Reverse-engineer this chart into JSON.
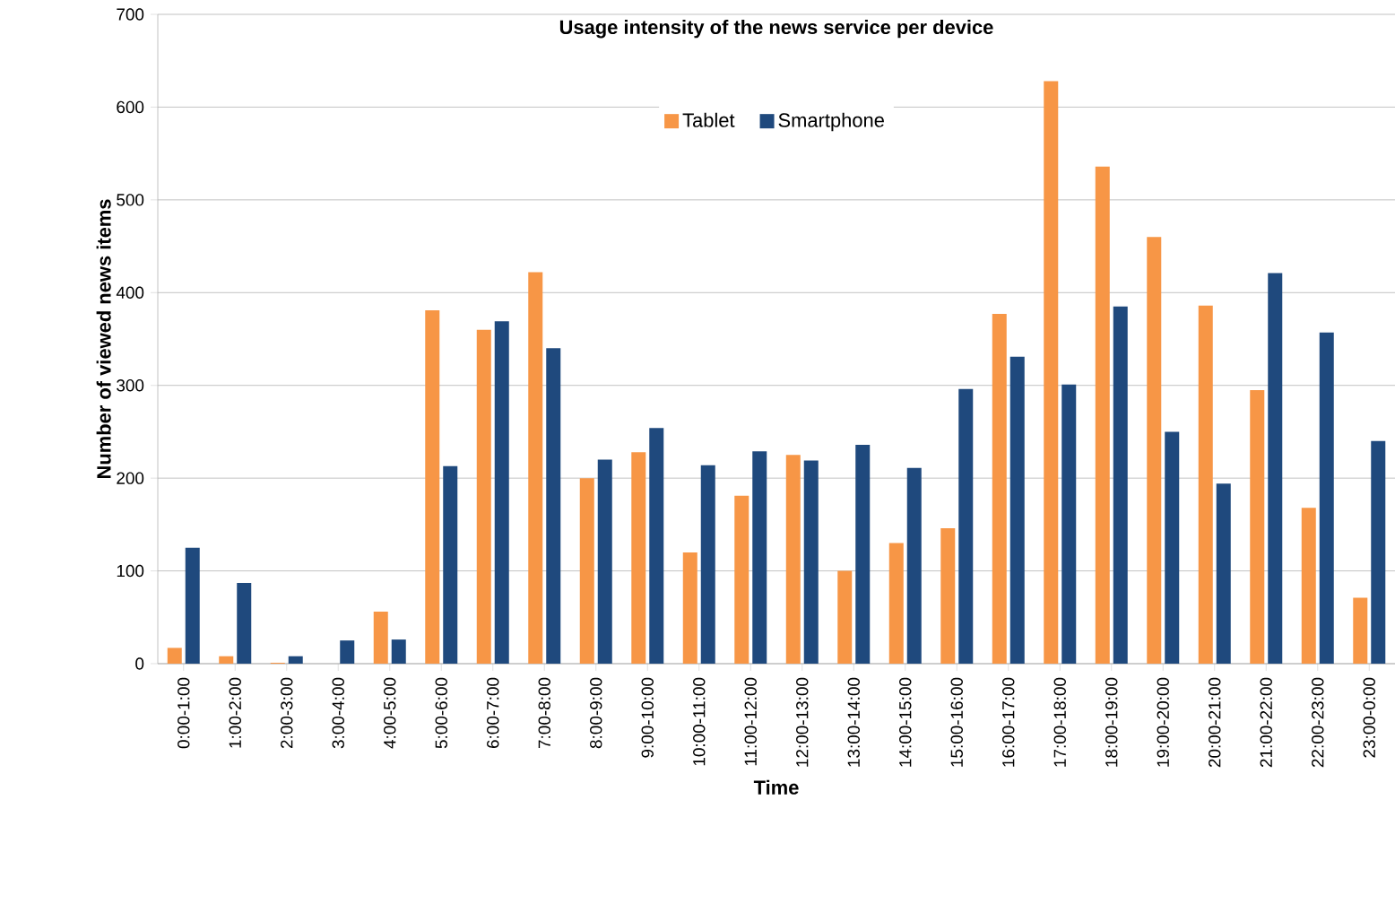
{
  "chart_data": {
    "type": "bar",
    "title": "Usage intensity of the news service per device",
    "xlabel": "Time",
    "ylabel": "Number of viewed news items",
    "categories": [
      "0:00-1:00",
      "1:00-2:00",
      "2:00-3:00",
      "3:00-4:00",
      "4:00-5:00",
      "5:00-6:00",
      "6:00-7:00",
      "7:00-8:00",
      "8:00-9:00",
      "9:00-10:00",
      "10:00-11:00",
      "11:00-12:00",
      "12:00-13:00",
      "13:00-14:00",
      "14:00-15:00",
      "15:00-16:00",
      "16:00-17:00",
      "17:00-18:00",
      "18:00-19:00",
      "19:00-20:00",
      "20:00-21:00",
      "21:00-22:00",
      "22:00-23:00",
      "23:00-0:00"
    ],
    "series": [
      {
        "name": "Tablet",
        "color": "#f79646",
        "values": [
          17,
          8,
          1,
          0,
          56,
          381,
          360,
          422,
          200,
          228,
          120,
          181,
          225,
          100,
          130,
          146,
          377,
          628,
          536,
          460,
          386,
          295,
          168,
          71
        ]
      },
      {
        "name": "Smartphone",
        "color": "#1f497d",
        "values": [
          125,
          87,
          8,
          25,
          26,
          213,
          369,
          340,
          220,
          254,
          214,
          229,
          219,
          236,
          211,
          296,
          331,
          301,
          385,
          250,
          194,
          421,
          357,
          240
        ]
      }
    ],
    "ylim": [
      0,
      700
    ],
    "yticks": [
      0,
      100,
      200,
      300,
      400,
      500,
      600,
      700
    ],
    "grid": "y",
    "legend": "top"
  }
}
